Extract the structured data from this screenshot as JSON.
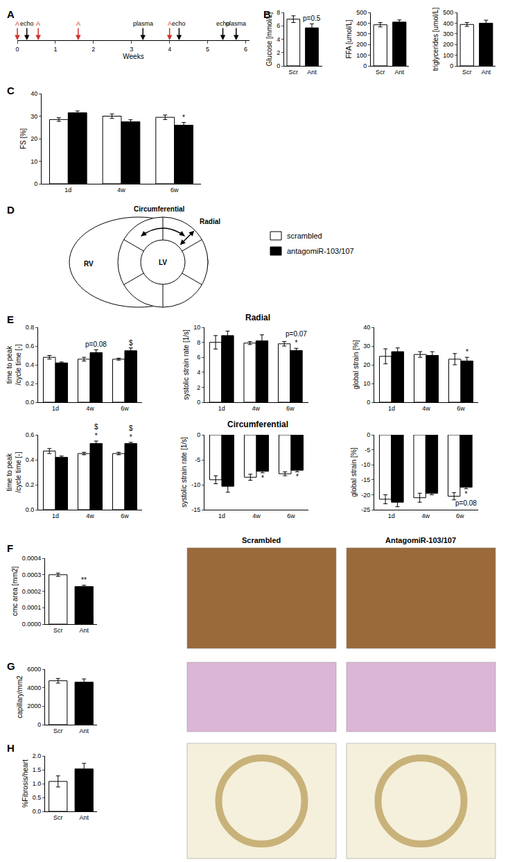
{
  "panel_labels": [
    "A",
    "B",
    "C",
    "D",
    "E",
    "F",
    "G",
    "H"
  ],
  "timeline": {
    "type": "timeline",
    "xlabel": "Weeks",
    "xlim": [
      0,
      6.1
    ],
    "xticks": [
      0,
      1,
      2,
      3,
      4,
      5,
      6
    ],
    "events": [
      {
        "x": 0,
        "label": "A",
        "color": "#d0312d"
      },
      {
        "x": 0.25,
        "label": "echo",
        "color": "#000000"
      },
      {
        "x": 0.55,
        "label": "A",
        "color": "#d0312d"
      },
      {
        "x": 1.6,
        "label": "A",
        "color": "#d0312d"
      },
      {
        "x": 3.3,
        "label": "plasma",
        "color": "#000000"
      },
      {
        "x": 4.0,
        "label": "A",
        "color": "#d0312d"
      },
      {
        "x": 4.25,
        "label": "echo",
        "color": "#000000"
      },
      {
        "x": 5.4,
        "label": "echo",
        "color": "#000000"
      },
      {
        "x": 5.75,
        "label": "plasma",
        "color": "#000000"
      }
    ]
  },
  "diagram": {
    "labels": {
      "circumferential": "Circumferential",
      "radial": "Radial",
      "rv": "RV",
      "lv": "LV"
    }
  },
  "section_titles": [
    "Radial",
    "Circumferential"
  ],
  "image_labels": [
    "Scrambled",
    "AntagomiR-103/107"
  ],
  "chart_data": [
    {
      "type": "bar",
      "ylabel": "Glucose [mmol/L]",
      "categories": [
        "Scr",
        "Ant"
      ],
      "values": [
        7.0,
        5.7
      ],
      "errors": [
        0.5,
        0.6
      ],
      "colors": [
        "#ffffff",
        "#000000"
      ],
      "ylim": [
        0,
        8
      ],
      "yticks": [
        0,
        2,
        4,
        6,
        8
      ],
      "annotations": [
        {
          "category": "Ant",
          "text": [
            "p=0.5"
          ]
        }
      ]
    },
    {
      "type": "bar",
      "ylabel": "FFA [umol/L]",
      "categories": [
        "Scr",
        "Ant"
      ],
      "values": [
        385,
        410
      ],
      "errors": [
        20,
        20
      ],
      "colors": [
        "#ffffff",
        "#000000"
      ],
      "ylim": [
        0,
        500
      ],
      "yticks": [
        0,
        100,
        200,
        300,
        400,
        500
      ]
    },
    {
      "type": "bar",
      "ylabel": "triglycerides [umol/L]",
      "categories": [
        "Scr",
        "Ant"
      ],
      "values": [
        388,
        400
      ],
      "errors": [
        18,
        28
      ],
      "colors": [
        "#ffffff",
        "#000000"
      ],
      "ylim": [
        0,
        500
      ],
      "yticks": [
        0,
        100,
        200,
        300,
        400,
        500
      ]
    },
    {
      "type": "bar",
      "ylabel": "FS [%]",
      "categories": [
        "1d",
        "4w",
        "6w"
      ],
      "series": [
        {
          "name": "scrambled",
          "color": "#ffffff",
          "values": [
            28.5,
            30,
            29.5
          ],
          "errors": [
            0.8,
            1.0,
            1.0
          ]
        },
        {
          "name": "antagomiR-103/107",
          "color": "#000000",
          "values": [
            31.5,
            27.5,
            26
          ],
          "errors": [
            0.8,
            0.9,
            1.2
          ]
        }
      ],
      "ylim": [
        0,
        40
      ],
      "yticks": [
        0,
        10,
        20,
        30,
        40
      ],
      "annotations": [
        {
          "category": "6w",
          "series": "antagomiR-103/107",
          "text": [
            "*"
          ]
        }
      ]
    },
    {
      "type": "bar",
      "ylabel": [
        "time to peak",
        "/cycle time [-]"
      ],
      "categories": [
        "1d",
        "4w",
        "6w"
      ],
      "series": [
        {
          "name": "scrambled",
          "color": "#ffffff",
          "values": [
            0.48,
            0.46,
            0.46
          ],
          "errors": [
            0.02,
            0.02,
            0.01
          ]
        },
        {
          "name": "antagomiR-103/107",
          "color": "#000000",
          "values": [
            0.42,
            0.53,
            0.55
          ],
          "errors": [
            0.01,
            0.03,
            0.03
          ]
        }
      ],
      "ylim": [
        0,
        0.8
      ],
      "yticks": [
        {
          "value": 0,
          "label": "0.0"
        },
        0.2,
        0.4,
        0.6,
        0.8
      ],
      "annotations": [
        {
          "category": "4w",
          "series": "antagomiR-103/107",
          "text": [
            "p=0.08"
          ]
        },
        {
          "category": "6w",
          "series": "antagomiR-103/107",
          "text": [
            "$"
          ]
        }
      ]
    },
    {
      "type": "bar",
      "ylabel": "systolic strain rate [1/s]",
      "categories": [
        "1d",
        "4w",
        "6w"
      ],
      "series": [
        {
          "name": "scrambled",
          "color": "#ffffff",
          "values": [
            8.0,
            7.9,
            7.8
          ],
          "errors": [
            0.9,
            0.2,
            0.3
          ]
        },
        {
          "name": "antagomiR-103/107",
          "color": "#000000",
          "values": [
            8.9,
            8.2,
            6.9
          ],
          "errors": [
            0.6,
            0.8,
            0.3
          ]
        }
      ],
      "ylim": [
        0,
        10
      ],
      "yticks": [
        0,
        2,
        4,
        6,
        8,
        10
      ],
      "annotations": [
        {
          "category": "6w",
          "series": "antagomiR-103/107",
          "text": [
            "p=0.07",
            "*"
          ]
        }
      ]
    },
    {
      "type": "bar",
      "ylabel": "global strain [%]",
      "categories": [
        "1d",
        "4w",
        "6w"
      ],
      "series": [
        {
          "name": "scrambled",
          "color": "#ffffff",
          "values": [
            24.5,
            25.5,
            23
          ],
          "errors": [
            4,
            1.5,
            3
          ]
        },
        {
          "name": "antagomiR-103/107",
          "color": "#000000",
          "values": [
            27,
            25,
            22
          ],
          "errors": [
            2,
            2,
            2
          ]
        }
      ],
      "ylim": [
        0,
        40
      ],
      "yticks": [
        0,
        10,
        20,
        30,
        40
      ],
      "annotations": [
        {
          "category": "6w",
          "series": "antagomiR-103/107",
          "text": [
            "*"
          ]
        }
      ]
    },
    {
      "type": "bar",
      "ylabel": [
        "time to peak",
        "/cycle time [-]"
      ],
      "categories": [
        "1d",
        "4w",
        "6w"
      ],
      "series": [
        {
          "name": "scrambled",
          "color": "#ffffff",
          "values": [
            0.47,
            0.45,
            0.45
          ],
          "errors": [
            0.02,
            0.01,
            0.01
          ]
        },
        {
          "name": "antagomiR-103/107",
          "color": "#000000",
          "values": [
            0.42,
            0.53,
            0.53
          ],
          "errors": [
            0.01,
            0.02,
            0.01
          ]
        }
      ],
      "ylim": [
        0,
        0.6
      ],
      "yticks": [
        {
          "value": 0,
          "label": "0.0"
        },
        0.2,
        0.4,
        0.6
      ],
      "annotations": [
        {
          "category": "4w",
          "series": "antagomiR-103/107",
          "text": [
            "$",
            "*"
          ]
        },
        {
          "category": "6w",
          "series": "antagomiR-103/107",
          "text": [
            "$",
            "*"
          ]
        }
      ]
    },
    {
      "type": "bar",
      "ylabel": "systolic strain rate [1/s]",
      "categories": [
        "1d",
        "4w",
        "6w"
      ],
      "series": [
        {
          "name": "scrambled",
          "color": "#ffffff",
          "values": [
            -9.0,
            -8.5,
            -7.8
          ],
          "errors": [
            0.8,
            0.6,
            0.4
          ]
        },
        {
          "name": "antagomiR-103/107",
          "color": "#000000",
          "values": [
            -10.3,
            -7.3,
            -7.1
          ],
          "errors": [
            1.2,
            0.3,
            0.3
          ]
        }
      ],
      "ylim": [
        -15,
        0
      ],
      "yticks": [
        -15,
        -10,
        -5,
        0
      ],
      "annotations": [
        {
          "category": "4w",
          "series": "antagomiR-103/107",
          "text": [
            "*"
          ]
        },
        {
          "category": "6w",
          "series": "antagomiR-103/107",
          "text": [
            "*"
          ]
        }
      ]
    },
    {
      "type": "bar",
      "ylabel": "global strain [%]",
      "categories": [
        "1d",
        "4w",
        "6w"
      ],
      "series": [
        {
          "name": "scrambled",
          "color": "#ffffff",
          "values": [
            -21.5,
            -21,
            -20.5
          ],
          "errors": [
            1.5,
            1.5,
            1.2
          ]
        },
        {
          "name": "antagomiR-103/107",
          "color": "#000000",
          "values": [
            -22.5,
            -19.5,
            -17.5
          ],
          "errors": [
            1.5,
            0.5,
            0.5
          ]
        }
      ],
      "ylim": [
        -25,
        0
      ],
      "yticks": [
        -25,
        -20,
        -15,
        -10,
        -5,
        0
      ],
      "annotations": [
        {
          "category": "6w",
          "series": "antagomiR-103/107",
          "text": [
            "*",
            "p=0.08"
          ]
        }
      ]
    },
    {
      "type": "bar",
      "ylabel": "cmc area [mm2]",
      "categories": [
        "Scr",
        "Ant"
      ],
      "values": [
        0.0003,
        0.000228
      ],
      "errors": [
        1e-05,
        8e-06
      ],
      "colors": [
        "#ffffff",
        "#000000"
      ],
      "ylim": [
        0,
        0.0004
      ],
      "yticks": [
        {
          "value": 0,
          "label": "0.0000"
        },
        0.0001,
        0.0002,
        0.0003,
        0.0004
      ],
      "annotations": [
        {
          "category": "Ant",
          "text": [
            "**"
          ]
        }
      ]
    },
    {
      "type": "bar",
      "ylabel": "capillary/mm2",
      "categories": [
        "Scr",
        "Ant"
      ],
      "values": [
        4750,
        4600
      ],
      "errors": [
        250,
        350
      ],
      "colors": [
        "#ffffff",
        "#000000"
      ],
      "ylim": [
        0,
        6000
      ],
      "yticks": [
        0,
        2000,
        4000,
        6000
      ]
    },
    {
      "type": "bar",
      "ylabel": "%Fibrosis/heart",
      "categories": [
        "Scr",
        "Ant"
      ],
      "values": [
        1.08,
        1.53
      ],
      "errors": [
        0.2,
        0.2
      ],
      "colors": [
        "#ffffff",
        "#000000"
      ],
      "ylim": [
        0,
        2.0
      ],
      "yticks": [
        {
          "value": 0,
          "label": "0.0"
        },
        0.5,
        {
          "value": 1,
          "label": "1.0"
        },
        1.5,
        {
          "value": 2,
          "label": "2.0"
        }
      ]
    }
  ]
}
